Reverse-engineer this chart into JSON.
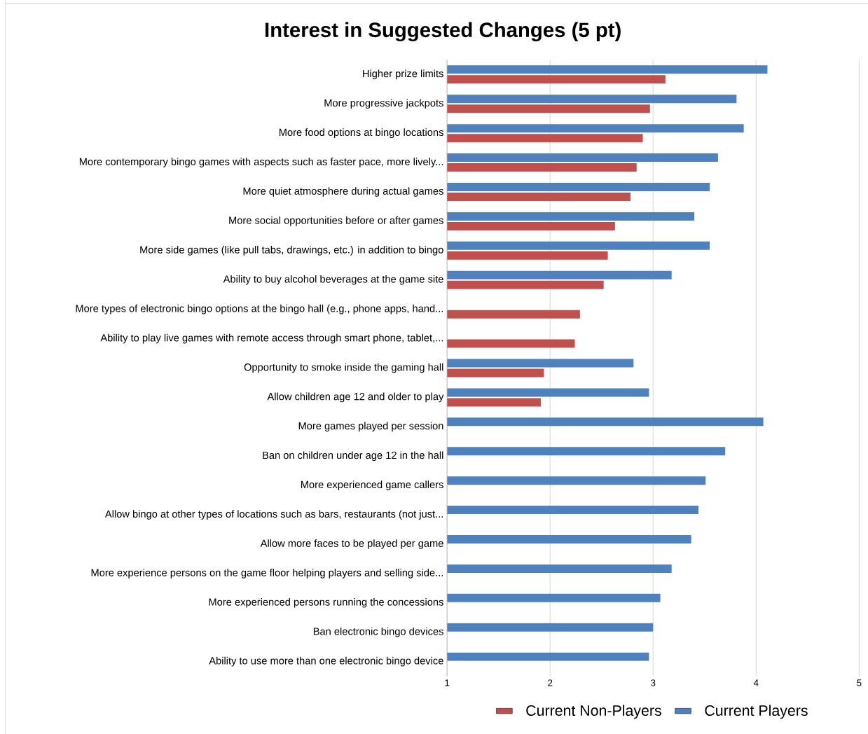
{
  "chart_data": {
    "type": "bar",
    "orientation": "horizontal",
    "title": "Interest in Suggested Changes (5 pt)",
    "categories": [
      "Higher prize limits",
      "More progressive jackpots",
      "More food options at bingo locations",
      "More contemporary bingo games with aspects such as faster pace, more lively...",
      "More quiet atmosphere during actual games",
      "More social opportunities before or after games",
      "More side games (like pull tabs, drawings, etc.) in addition to bingo",
      "Ability to buy alcohol beverages at the game site",
      "More types of electronic bingo options at the bingo hall (e.g., phone apps, hand...",
      "Ability to play live games with remote access through smart phone, tablet,...",
      "Opportunity to smoke inside the gaming hall",
      "Allow children age 12 and older to play",
      "More games played per session",
      "Ban on children under age 12 in the hall",
      "More experienced game callers",
      "Allow bingo at other types of locations such as bars, restaurants (not just...",
      "Allow more faces to be played per game",
      "More experience persons on the game floor helping players and selling side...",
      "More experienced persons running the concessions",
      "Ban electronic bingo devices",
      "Ability to use more than one electronic bingo device"
    ],
    "series": [
      {
        "name": "Current Non-Players",
        "color": "#c0504d",
        "values": [
          3.12,
          2.97,
          2.9,
          2.84,
          2.78,
          2.63,
          2.56,
          2.52,
          2.29,
          2.24,
          1.94,
          1.91,
          null,
          null,
          null,
          null,
          null,
          null,
          null,
          null,
          null
        ]
      },
      {
        "name": "Current Players",
        "color": "#4f81bd",
        "values": [
          4.11,
          3.81,
          3.88,
          3.63,
          3.55,
          3.4,
          3.55,
          3.18,
          null,
          null,
          2.81,
          2.96,
          4.07,
          3.7,
          3.51,
          3.44,
          3.37,
          3.18,
          3.07,
          3.0,
          2.96
        ]
      }
    ],
    "xlim": [
      1,
      5
    ],
    "xticks": [
      1,
      2,
      3,
      4,
      5
    ],
    "grid": "x",
    "legend": "bottom"
  }
}
